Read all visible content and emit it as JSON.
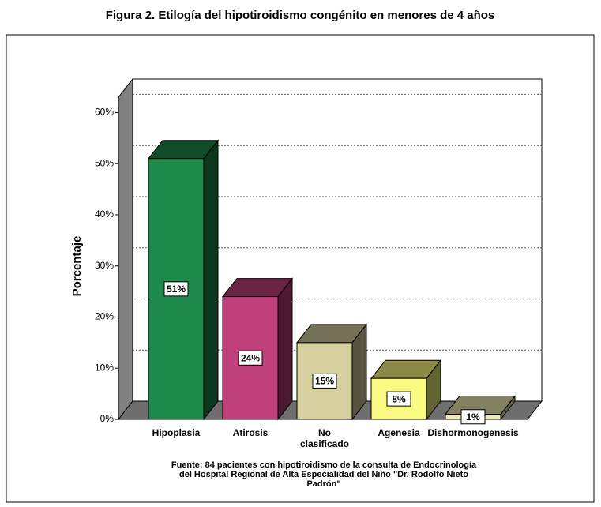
{
  "chart_data": {
    "type": "bar3d",
    "title": "Figura 2. Etilogía del hipotiroidismo congénito en menores de 4 años",
    "y_label": "Porcentaje",
    "categories": [
      "Hipoplasia",
      "Atirosis",
      "No clasificado",
      "Agenesia",
      "Dishormonogenesis"
    ],
    "values": [
      51,
      24,
      15,
      8,
      1
    ],
    "value_labels": [
      "51%",
      "24%",
      "15%",
      "8%",
      "1%"
    ],
    "colors": [
      "#1e8a4a",
      "#c0407c",
      "#d6cf9e",
      "#fbfa80",
      "#f0eab4"
    ],
    "ylim": [
      0,
      63
    ],
    "yticks": [
      {
        "value": 0,
        "label": "0%"
      },
      {
        "value": 10,
        "label": "10%"
      },
      {
        "value": 20,
        "label": "20%"
      },
      {
        "value": 30,
        "label": "30%"
      },
      {
        "value": 40,
        "label": "40%"
      },
      {
        "value": 50,
        "label": "50%"
      },
      {
        "value": 60,
        "label": "60%"
      }
    ],
    "grid": true,
    "source": [
      "Fuente: 84 pacientes con hipotiroidismo de la consulta de Endocrinología",
      "del Hospital Regional de Alta Especialidad del Niño \"Dr. Rodolfo Nieto",
      "Padrón\""
    ]
  }
}
